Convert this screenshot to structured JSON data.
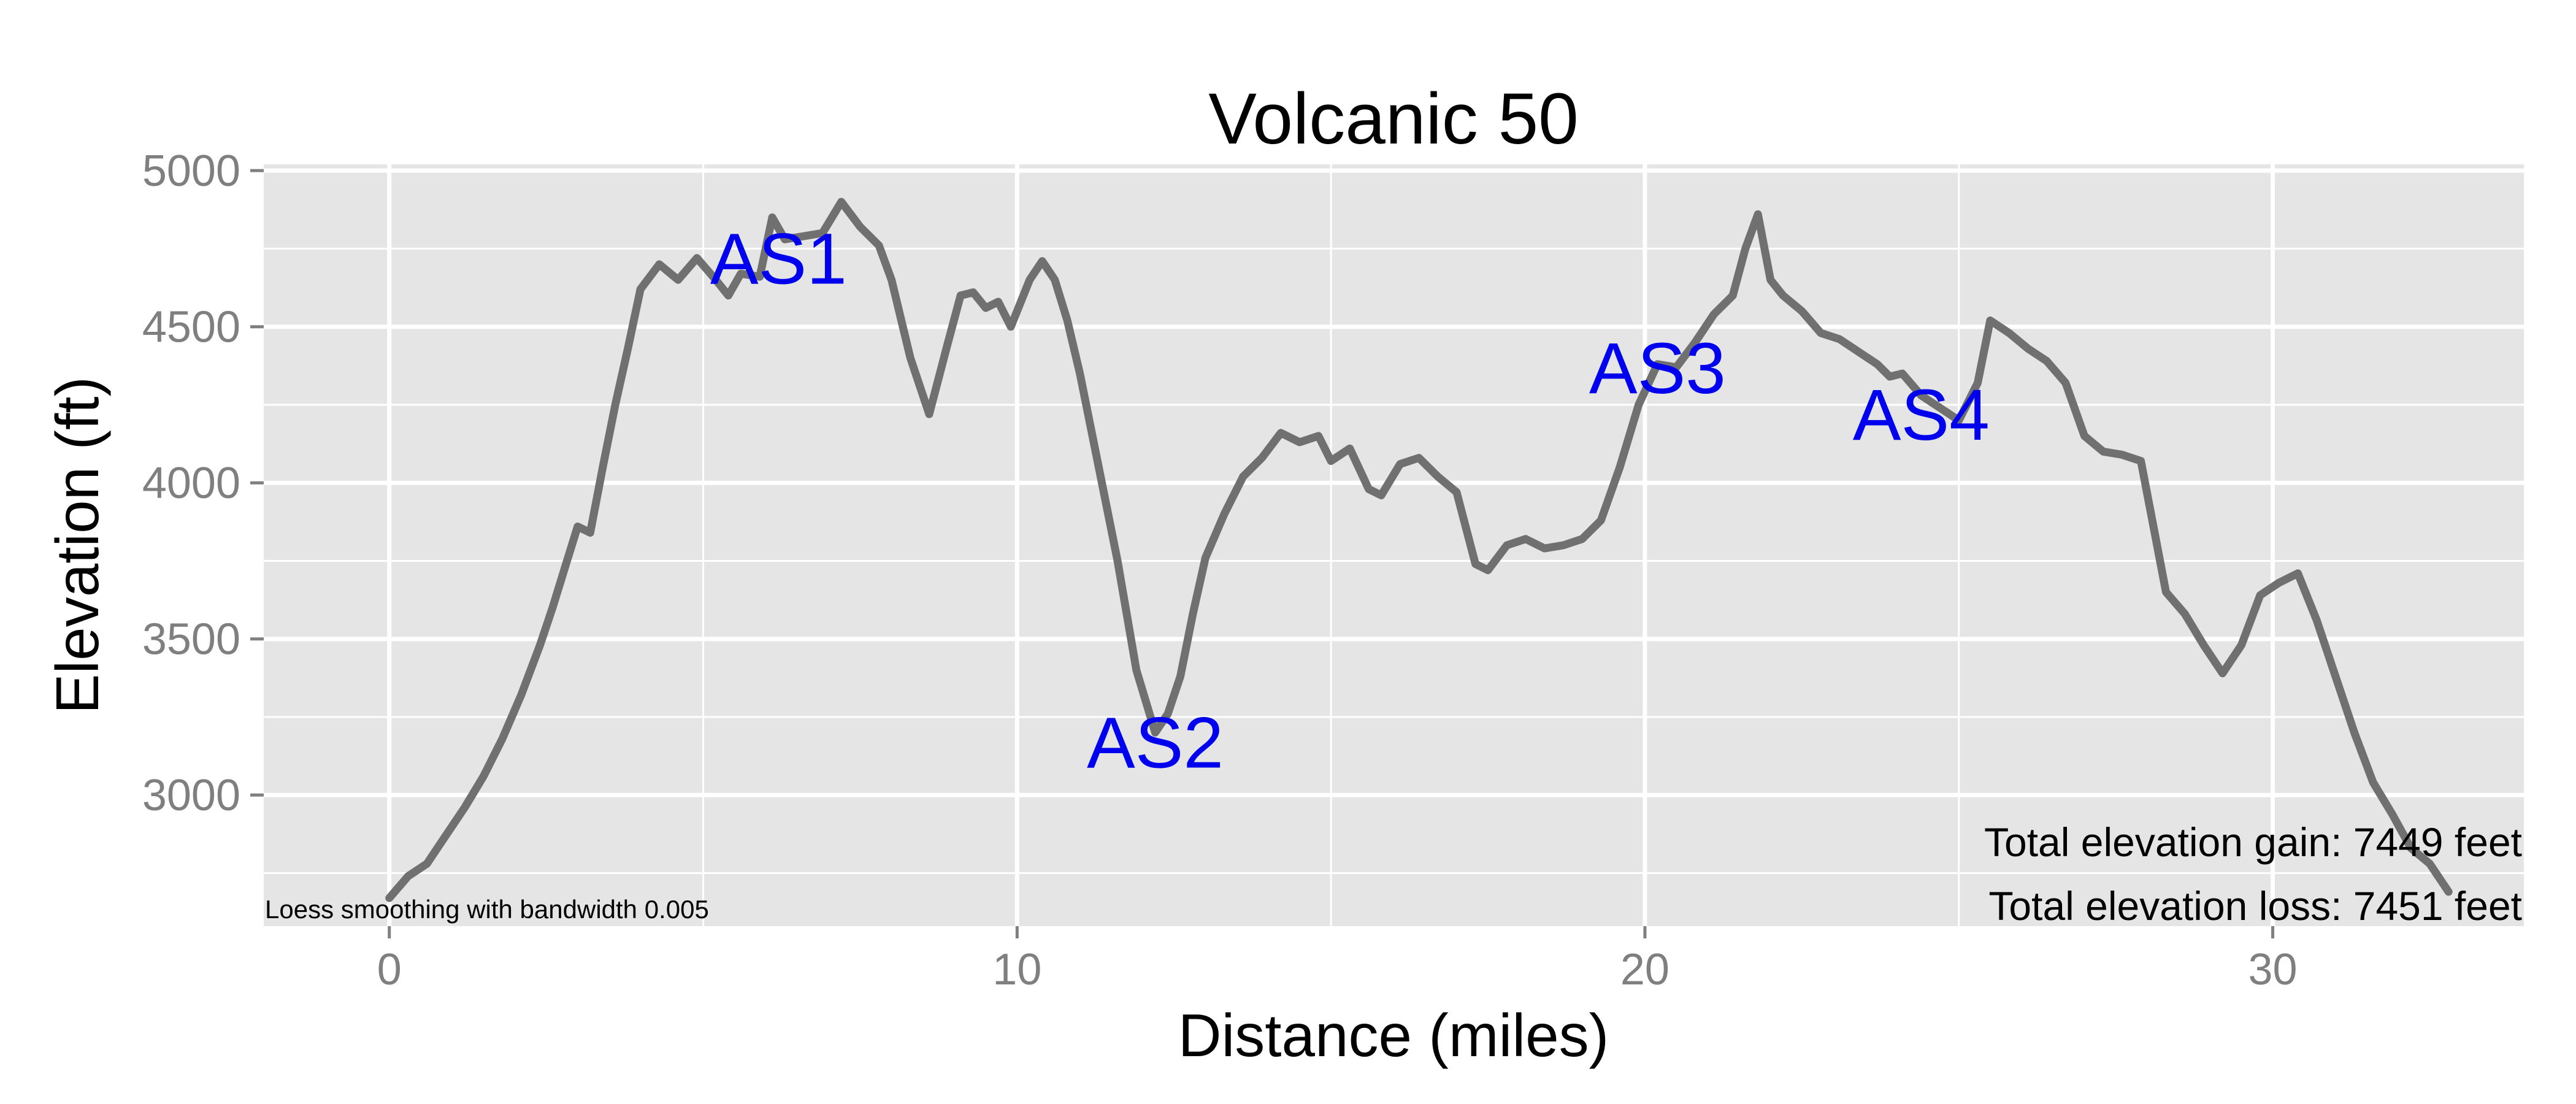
{
  "chart_data": {
    "type": "line",
    "title": "Volcanic 50",
    "xlabel": "Distance (miles)",
    "ylabel": "Elevation (ft)",
    "xlim": [
      -2,
      34
    ],
    "ylim": [
      2580,
      5020
    ],
    "x_ticks": [
      0,
      10,
      20,
      30
    ],
    "y_ticks": [
      3000,
      3500,
      4000,
      4500,
      5000
    ],
    "grid": true,
    "legend": "none",
    "colors": {
      "line": "#707070",
      "panel": "#e5e5e5",
      "grid": "#ffffff",
      "annotation": "#0000ee"
    },
    "series": [
      {
        "x": [
          0,
          0.3,
          0.6,
          0.9,
          1.2,
          1.5,
          1.8,
          2.1,
          2.4,
          2.6,
          2.8,
          3.0,
          3.2,
          3.4,
          3.6,
          3.8,
          4.0,
          4.3,
          4.6,
          4.9,
          5.2,
          5.4,
          5.6,
          5.9,
          6.1,
          6.3,
          6.6,
          6.9,
          7.2,
          7.5,
          7.8,
          8.0,
          8.3,
          8.6,
          8.9,
          9.1,
          9.3,
          9.5,
          9.7,
          9.9,
          10.2,
          10.4,
          10.6,
          10.8,
          11.0,
          11.3,
          11.6,
          11.9,
          12.2,
          12.4,
          12.6,
          12.8,
          13.0,
          13.3,
          13.6,
          13.9,
          14.2,
          14.5,
          14.8,
          15.0,
          15.3,
          15.6,
          15.8,
          16.1,
          16.4,
          16.7,
          17.0,
          17.3,
          17.5,
          17.8,
          18.1,
          18.4,
          18.7,
          19.0,
          19.3,
          19.6,
          19.9,
          20.2,
          20.5,
          20.8,
          21.1,
          21.4,
          21.6,
          21.8,
          22.0,
          22.2,
          22.5,
          22.8,
          23.1,
          23.4,
          23.7,
          23.9,
          24.1,
          24.4,
          24.7,
          25.0,
          25.3,
          25.5,
          25.8,
          26.1,
          26.4,
          26.7,
          27.0,
          27.3,
          27.6,
          27.9,
          28.1,
          28.3,
          28.6,
          28.9,
          29.2,
          29.5,
          29.8,
          30.1,
          30.4,
          30.7,
          31.0,
          31.3,
          31.6,
          31.9,
          32.2,
          32.5,
          32.8
        ],
        "y": [
          2670,
          2740,
          2780,
          2870,
          2960,
          3060,
          3180,
          3320,
          3480,
          3600,
          3730,
          3860,
          3840,
          4050,
          4250,
          4430,
          4620,
          4700,
          4650,
          4720,
          4650,
          4600,
          4670,
          4660,
          4850,
          4780,
          4790,
          4800,
          4900,
          4820,
          4760,
          4650,
          4400,
          4220,
          4450,
          4600,
          4610,
          4560,
          4580,
          4500,
          4650,
          4710,
          4650,
          4520,
          4350,
          4050,
          3750,
          3400,
          3200,
          3260,
          3380,
          3580,
          3760,
          3900,
          4020,
          4080,
          4160,
          4130,
          4150,
          4070,
          4110,
          3980,
          3960,
          4060,
          4080,
          4020,
          3970,
          3740,
          3720,
          3800,
          3820,
          3790,
          3800,
          3820,
          3880,
          4050,
          4250,
          4380,
          4370,
          4450,
          4540,
          4600,
          4750,
          4860,
          4650,
          4600,
          4550,
          4480,
          4460,
          4420,
          4380,
          4340,
          4350,
          4280,
          4240,
          4200,
          4320,
          4520,
          4480,
          4430,
          4390,
          4320,
          4150,
          4100,
          4090,
          4070,
          3860,
          3650,
          3580,
          3480,
          3390,
          3480,
          3640,
          3680,
          3710,
          3560,
          3380,
          3200,
          3040,
          2940,
          2830,
          2780,
          2690
        ]
      }
    ],
    "annotations": [
      {
        "label": "AS1",
        "x": 6.2,
        "y": 4720
      },
      {
        "label": "AS2",
        "x": 12.2,
        "y": 3170
      },
      {
        "label": "AS3",
        "x": 20.2,
        "y": 4370
      },
      {
        "label": "AS4",
        "x": 24.4,
        "y": 4220
      }
    ]
  },
  "texts": {
    "gain": "Total elevation gain: 7449 feet",
    "loss": "Total elevation loss: 7451 feet",
    "note": "Loess smoothing with bandwidth 0.005"
  }
}
